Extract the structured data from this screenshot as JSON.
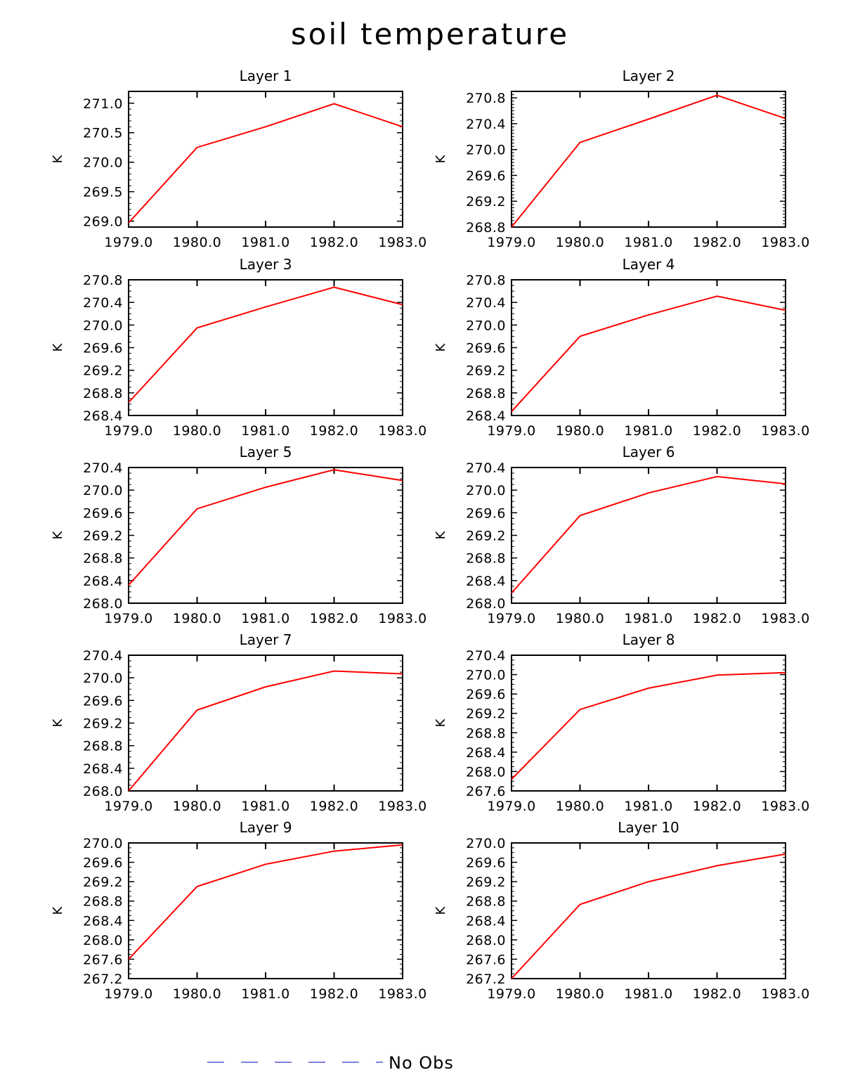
{
  "title": "soil temperature",
  "colors": {
    "series": "#ff0000",
    "no_obs": "#5555cc",
    "axis": "#000000"
  },
  "legend": {
    "label": "No Obs"
  },
  "chart_data": [
    {
      "type": "line",
      "title": "Layer 1",
      "ylabel": "K",
      "x": [
        1979,
        1980,
        1981,
        1982,
        1983
      ],
      "xticks": [
        "1979.0",
        "1980.0",
        "1981.0",
        "1982.0",
        "1983.0"
      ],
      "ylim": [
        268.9,
        271.2
      ],
      "yticks": [
        "269.0",
        "270.0",
        "270.5",
        "271.0"
      ],
      "yticks_extra": [
        "269.5"
      ],
      "series": [
        {
          "name": "soil temperature",
          "values": [
            268.97,
            270.25,
            270.6,
            270.99,
            270.6
          ]
        }
      ]
    },
    {
      "type": "line",
      "title": "Layer 2",
      "ylabel": "K",
      "x": [
        1979,
        1980,
        1981,
        1982,
        1983
      ],
      "xticks": [
        "1979.0",
        "1980.0",
        "1981.0",
        "1982.0",
        "1983.0"
      ],
      "ylim": [
        268.8,
        270.9
      ],
      "yticks": [
        "268.8",
        "269.2",
        "269.6",
        "270.0",
        "270.4",
        "270.8"
      ],
      "series": [
        {
          "name": "soil temperature",
          "values": [
            268.8,
            270.11,
            270.47,
            270.84,
            270.48
          ]
        }
      ]
    },
    {
      "type": "line",
      "title": "Layer 3",
      "ylabel": "K",
      "x": [
        1979,
        1980,
        1981,
        1982,
        1983
      ],
      "xticks": [
        "1979.0",
        "1980.0",
        "1981.0",
        "1982.0",
        "1983.0"
      ],
      "ylim": [
        268.4,
        270.8
      ],
      "yticks": [
        "268.4",
        "268.8",
        "269.2",
        "269.6",
        "270.0",
        "270.4",
        "270.8"
      ],
      "series": [
        {
          "name": "soil temperature",
          "values": [
            268.63,
            269.95,
            270.32,
            270.67,
            270.36
          ]
        }
      ]
    },
    {
      "type": "line",
      "title": "Layer 4",
      "ylabel": "K",
      "x": [
        1979,
        1980,
        1981,
        1982,
        1983
      ],
      "xticks": [
        "1979.0",
        "1980.0",
        "1981.0",
        "1982.0",
        "1983.0"
      ],
      "ylim": [
        268.4,
        270.8
      ],
      "yticks": [
        "268.4",
        "268.8",
        "269.2",
        "269.6",
        "270.0",
        "270.4",
        "270.8"
      ],
      "series": [
        {
          "name": "soil temperature",
          "values": [
            268.47,
            269.8,
            270.18,
            270.51,
            270.26
          ]
        }
      ]
    },
    {
      "type": "line",
      "title": "Layer 5",
      "ylabel": "K",
      "x": [
        1979,
        1980,
        1981,
        1982,
        1983
      ],
      "xticks": [
        "1979.0",
        "1980.0",
        "1981.0",
        "1982.0",
        "1983.0"
      ],
      "ylim": [
        268.0,
        270.4
      ],
      "yticks": [
        "268.0",
        "268.4",
        "268.8",
        "269.2",
        "269.6",
        "270.0",
        "270.4"
      ],
      "series": [
        {
          "name": "soil temperature",
          "values": [
            268.32,
            269.67,
            270.05,
            270.36,
            270.17
          ]
        }
      ]
    },
    {
      "type": "line",
      "title": "Layer 6",
      "ylabel": "K",
      "x": [
        1979,
        1980,
        1981,
        1982,
        1983
      ],
      "xticks": [
        "1979.0",
        "1980.0",
        "1981.0",
        "1982.0",
        "1983.0"
      ],
      "ylim": [
        268.0,
        270.4
      ],
      "yticks": [
        "268.0",
        "268.4",
        "268.8",
        "269.2",
        "269.6",
        "270.0",
        "270.4"
      ],
      "series": [
        {
          "name": "soil temperature",
          "values": [
            268.18,
            269.55,
            269.95,
            270.24,
            270.11
          ]
        }
      ]
    },
    {
      "type": "line",
      "title": "Layer 7",
      "ylabel": "K",
      "x": [
        1979,
        1980,
        1981,
        1982,
        1983
      ],
      "xticks": [
        "1979.0",
        "1980.0",
        "1981.0",
        "1982.0",
        "1983.0"
      ],
      "ylim": [
        268.0,
        270.4
      ],
      "yticks": [
        "268.0",
        "268.4",
        "268.8",
        "269.2",
        "269.6",
        "270.0",
        "270.4"
      ],
      "series": [
        {
          "name": "soil temperature",
          "values": [
            268.0,
            269.43,
            269.84,
            270.12,
            270.07
          ]
        }
      ]
    },
    {
      "type": "line",
      "title": "Layer 8",
      "ylabel": "K",
      "x": [
        1979,
        1980,
        1981,
        1982,
        1983
      ],
      "xticks": [
        "1979.0",
        "1980.0",
        "1981.0",
        "1982.0",
        "1983.0"
      ],
      "ylim": [
        267.6,
        270.4
      ],
      "yticks": [
        "267.6",
        "268.0",
        "268.4",
        "268.8",
        "269.2",
        "269.6",
        "270.0",
        "270.4"
      ],
      "series": [
        {
          "name": "soil temperature",
          "values": [
            267.84,
            269.28,
            269.72,
            269.99,
            270.04
          ]
        }
      ]
    },
    {
      "type": "line",
      "title": "Layer 9",
      "ylabel": "K",
      "x": [
        1979,
        1980,
        1981,
        1982,
        1983
      ],
      "xticks": [
        "1979.0",
        "1980.0",
        "1981.0",
        "1982.0",
        "1983.0"
      ],
      "ylim": [
        267.2,
        270.0
      ],
      "yticks": [
        "267.2",
        "267.6",
        "268.0",
        "268.4",
        "268.8",
        "269.2",
        "269.6",
        "270.0"
      ],
      "series": [
        {
          "name": "soil temperature",
          "values": [
            267.6,
            269.1,
            269.56,
            269.83,
            269.96
          ]
        }
      ]
    },
    {
      "type": "line",
      "title": "Layer 10",
      "ylabel": "K",
      "x": [
        1979,
        1980,
        1981,
        1982,
        1983
      ],
      "xticks": [
        "1979.0",
        "1980.0",
        "1981.0",
        "1982.0",
        "1983.0"
      ],
      "ylim": [
        267.2,
        270.0
      ],
      "yticks": [
        "267.2",
        "267.6",
        "268.0",
        "268.4",
        "268.8",
        "269.2",
        "269.6",
        "270.0"
      ],
      "series": [
        {
          "name": "soil temperature",
          "values": [
            267.2,
            268.73,
            269.2,
            269.53,
            269.77
          ]
        }
      ]
    }
  ]
}
